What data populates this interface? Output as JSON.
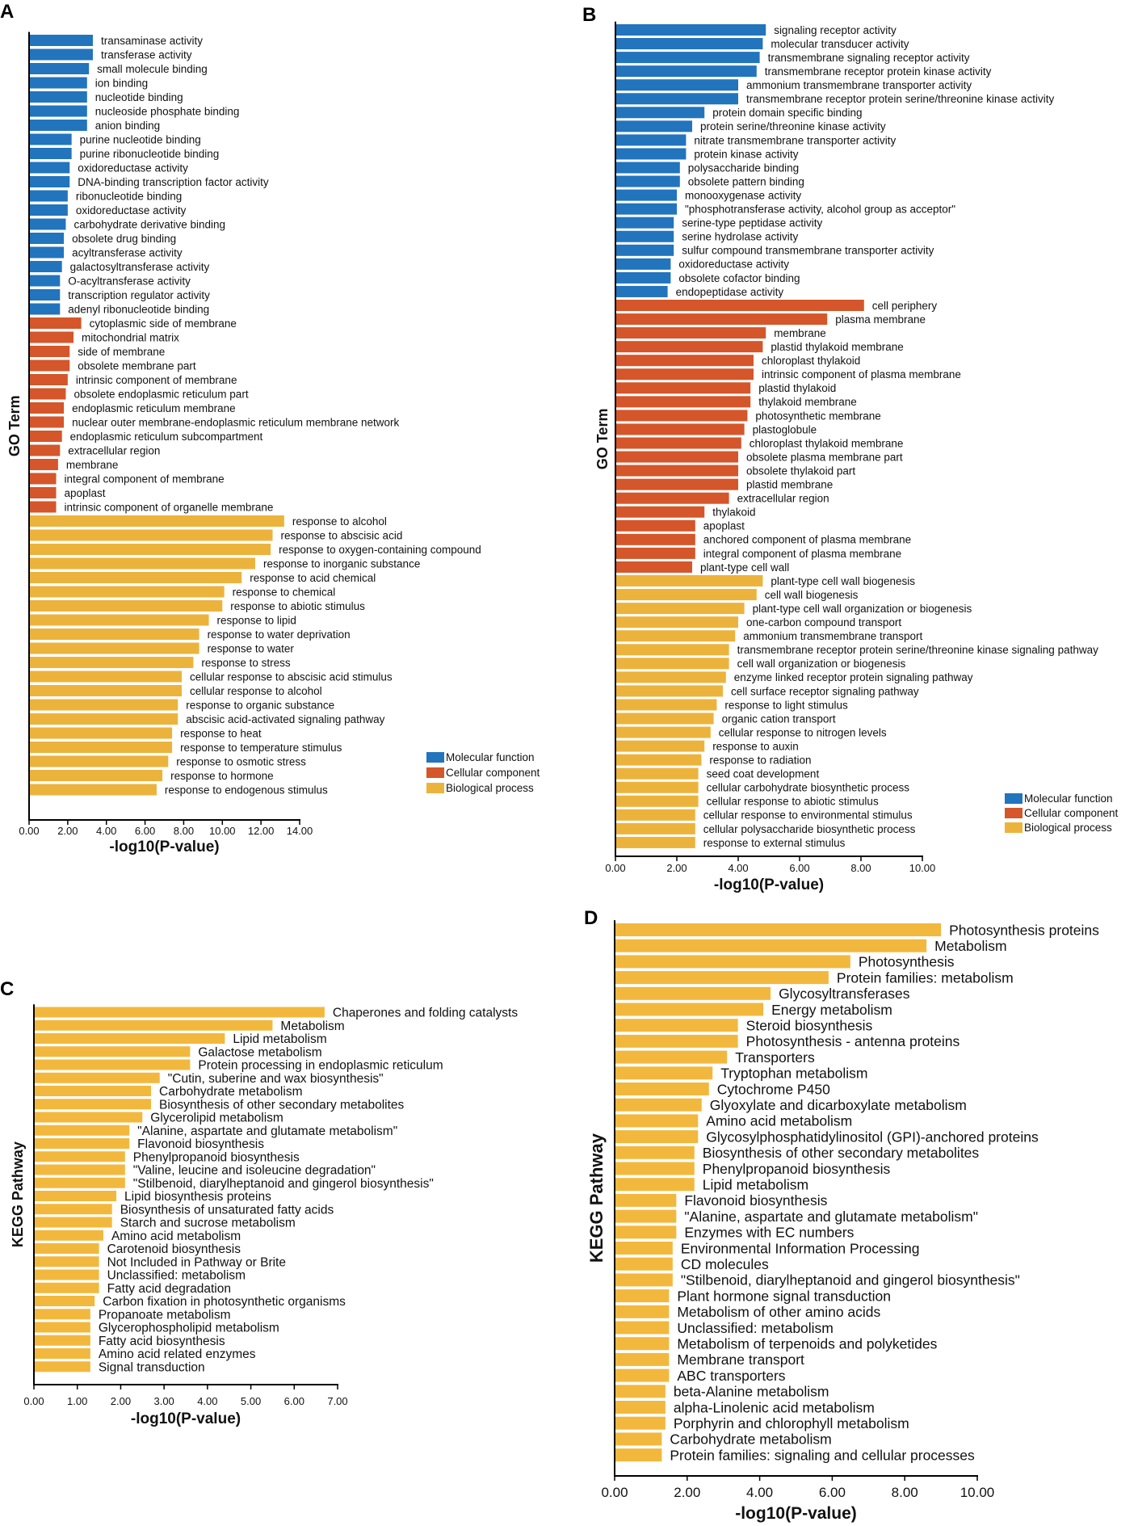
{
  "colors": {
    "molecular_function": "#2274bd",
    "cellular_component": "#d4562a",
    "biological_process": "#ecb33c",
    "kegg": "#f2b83d",
    "axis": "#000000"
  },
  "chart_data": [
    {
      "panel": "A",
      "type": "bar",
      "orientation": "horizontal",
      "xlabel": "-log10(P-value)",
      "ylabel": "GO Term",
      "xlim": [
        0,
        14
      ],
      "xticks": [
        "0.00",
        "2.00",
        "4.00",
        "6.00",
        "8.00",
        "10.00",
        "12.00",
        "14.00"
      ],
      "legend": [
        "Molecular function",
        "Cellular component",
        "Biological process"
      ],
      "legend_position": "bottom-right",
      "categories": [
        "transaminase activity",
        "transferase activity",
        "small molecule binding",
        "ion binding",
        "nucleotide binding",
        "nucleoside phosphate binding",
        "anion binding",
        "purine nucleotide binding",
        "purine ribonucleotide binding",
        "oxidoreductase activity",
        "DNA-binding transcription factor activity",
        "ribonucleotide binding",
        "oxidoreductase activity",
        "carbohydrate derivative binding",
        "obsolete drug binding",
        "acyltransferase activity",
        "galactosyltransferase activity",
        "O-acyltransferase activity",
        "transcription regulator activity",
        "adenyl ribonucleotide binding",
        "cytoplasmic side of membrane",
        "mitochondrial matrix",
        "side of membrane",
        "obsolete membrane part",
        "intrinsic component of membrane",
        "obsolete endoplasmic reticulum part",
        "endoplasmic reticulum membrane",
        "nuclear outer membrane-endoplasmic reticulum membrane network",
        "endoplasmic reticulum subcompartment",
        "extracellular region",
        "membrane",
        "integral component of membrane",
        "apoplast",
        "intrinsic component of organelle membrane",
        "response to alcohol",
        "response to abscisic acid",
        "response to oxygen-containing compound",
        "response to inorganic substance",
        "response to acid chemical",
        "response to chemical",
        "response to abiotic stimulus",
        "response to lipid",
        "response to water deprivation",
        "response to water",
        "response to stress",
        "cellular response to abscisic acid stimulus",
        "cellular response to alcohol",
        "response to organic substance",
        "abscisic acid-activated signaling pathway",
        "response to heat",
        "response to temperature stimulus",
        "response to osmotic stress",
        "response to hormone",
        "response to endogenous stimulus"
      ],
      "values": [
        3.3,
        3.3,
        3.1,
        3.0,
        3.0,
        3.0,
        3.0,
        2.2,
        2.2,
        2.1,
        2.1,
        2.0,
        2.0,
        1.9,
        1.8,
        1.8,
        1.7,
        1.6,
        1.6,
        1.6,
        2.7,
        2.3,
        2.1,
        2.1,
        2.0,
        1.9,
        1.8,
        1.8,
        1.7,
        1.6,
        1.5,
        1.4,
        1.4,
        1.4,
        13.2,
        12.6,
        12.5,
        11.7,
        11.0,
        10.1,
        10.0,
        9.3,
        8.8,
        8.8,
        8.5,
        7.9,
        7.9,
        7.7,
        7.7,
        7.4,
        7.4,
        7.2,
        6.9,
        6.6
      ],
      "groups": [
        "mf",
        "mf",
        "mf",
        "mf",
        "mf",
        "mf",
        "mf",
        "mf",
        "mf",
        "mf",
        "mf",
        "mf",
        "mf",
        "mf",
        "mf",
        "mf",
        "mf",
        "mf",
        "mf",
        "mf",
        "cc",
        "cc",
        "cc",
        "cc",
        "cc",
        "cc",
        "cc",
        "cc",
        "cc",
        "cc",
        "cc",
        "cc",
        "cc",
        "cc",
        "bp",
        "bp",
        "bp",
        "bp",
        "bp",
        "bp",
        "bp",
        "bp",
        "bp",
        "bp",
        "bp",
        "bp",
        "bp",
        "bp",
        "bp",
        "bp",
        "bp",
        "bp",
        "bp",
        "bp"
      ]
    },
    {
      "panel": "B",
      "type": "bar",
      "orientation": "horizontal",
      "xlabel": "-log10(P-value)",
      "ylabel": "GO Term",
      "xlim": [
        0,
        10
      ],
      "xticks": [
        "0.00",
        "2.00",
        "4.00",
        "6.00",
        "8.00",
        "10.00"
      ],
      "legend": [
        "Molecular function",
        "Cellular component",
        "Biological process"
      ],
      "legend_position": "bottom-right",
      "categories": [
        "signaling receptor activity",
        "molecular transducer activity",
        "transmembrane signaling receptor activity",
        "transmembrane receptor protein kinase activity",
        "ammonium transmembrane transporter activity",
        "transmembrane receptor protein serine/threonine kinase activity",
        "protein domain specific binding",
        "protein serine/threonine kinase activity",
        "nitrate transmembrane transporter activity",
        "protein kinase activity",
        "polysaccharide binding",
        "obsolete pattern binding",
        "monooxygenase activity",
        "\"phosphotransferase activity, alcohol group as acceptor\"",
        "serine-type peptidase activity",
        "serine hydrolase activity",
        "sulfur compound transmembrane transporter activity",
        "oxidoreductase activity",
        "obsolete cofactor binding",
        "endopeptidase activity",
        "cell periphery",
        "plasma membrane",
        "membrane",
        "plastid thylakoid membrane",
        "chloroplast thylakoid",
        "intrinsic component of plasma membrane",
        "plastid thylakoid",
        "thylakoid membrane",
        "photosynthetic membrane",
        "plastoglobule",
        "chloroplast thylakoid membrane",
        "obsolete plasma membrane part",
        "obsolete thylakoid part",
        "plastid membrane",
        "extracellular region",
        "thylakoid",
        "apoplast",
        "anchored component of plasma membrane",
        "integral component of plasma membrane",
        "plant-type cell wall",
        "plant-type cell wall biogenesis",
        "cell wall biogenesis",
        "plant-type cell wall organization or biogenesis",
        "one-carbon compound transport",
        "ammonium transmembrane transport",
        "transmembrane receptor protein serine/threonine kinase signaling pathway",
        "cell wall organization or biogenesis",
        "enzyme linked receptor protein signaling pathway",
        "cell surface receptor signaling pathway",
        "response to light stimulus",
        "organic cation transport",
        "cellular response to nitrogen levels",
        "response to auxin",
        "response to radiation",
        "seed coat development",
        "cellular carbohydrate biosynthetic process",
        "cellular response to abiotic stimulus",
        "cellular response to environmental stimulus",
        "cellular polysaccharide biosynthetic process",
        "response to external stimulus"
      ],
      "values": [
        4.9,
        4.8,
        4.7,
        4.6,
        4.0,
        4.0,
        2.9,
        2.5,
        2.3,
        2.3,
        2.1,
        2.1,
        2.0,
        2.0,
        1.9,
        1.9,
        1.9,
        1.8,
        1.8,
        1.7,
        8.1,
        6.9,
        4.9,
        4.8,
        4.5,
        4.5,
        4.4,
        4.4,
        4.3,
        4.2,
        4.1,
        4.0,
        4.0,
        4.0,
        3.7,
        2.9,
        2.6,
        2.6,
        2.6,
        2.5,
        4.8,
        4.6,
        4.2,
        4.0,
        3.9,
        3.7,
        3.7,
        3.6,
        3.5,
        3.3,
        3.2,
        3.1,
        2.9,
        2.8,
        2.7,
        2.7,
        2.7,
        2.6,
        2.6,
        2.6
      ],
      "groups": [
        "mf",
        "mf",
        "mf",
        "mf",
        "mf",
        "mf",
        "mf",
        "mf",
        "mf",
        "mf",
        "mf",
        "mf",
        "mf",
        "mf",
        "mf",
        "mf",
        "mf",
        "mf",
        "mf",
        "mf",
        "cc",
        "cc",
        "cc",
        "cc",
        "cc",
        "cc",
        "cc",
        "cc",
        "cc",
        "cc",
        "cc",
        "cc",
        "cc",
        "cc",
        "cc",
        "cc",
        "cc",
        "cc",
        "cc",
        "cc",
        "bp",
        "bp",
        "bp",
        "bp",
        "bp",
        "bp",
        "bp",
        "bp",
        "bp",
        "bp",
        "bp",
        "bp",
        "bp",
        "bp",
        "bp",
        "bp",
        "bp",
        "bp",
        "bp",
        "bp"
      ]
    },
    {
      "panel": "C",
      "type": "bar",
      "orientation": "horizontal",
      "xlabel": "-log10(P-value)",
      "ylabel": "KEGG Pathway",
      "xlim": [
        0,
        7
      ],
      "xticks": [
        "0.00",
        "1.00",
        "2.00",
        "3.00",
        "4.00",
        "5.00",
        "6.00",
        "7.00"
      ],
      "categories": [
        "Chaperones and folding catalysts",
        "Metabolism",
        "Lipid metabolism",
        "Galactose metabolism",
        "Protein processing in endoplasmic reticulum",
        "\"Cutin, suberine and wax biosynthesis\"",
        "Carbohydrate metabolism",
        "Biosynthesis of other secondary metabolites",
        "Glycerolipid metabolism",
        "\"Alanine, aspartate and glutamate metabolism\"",
        "Flavonoid biosynthesis",
        "Phenylpropanoid biosynthesis",
        "\"Valine, leucine and isoleucine degradation\"",
        "\"Stilbenoid, diarylheptanoid and gingerol biosynthesis\"",
        "Lipid biosynthesis proteins",
        "Biosynthesis of unsaturated fatty acids",
        "Starch and sucrose metabolism",
        "Amino acid metabolism",
        "Carotenoid biosynthesis",
        "Not Included in Pathway or Brite",
        "Unclassified: metabolism",
        "Fatty acid degradation",
        "Carbon fixation in photosynthetic organisms",
        "Propanoate metabolism",
        "Glycerophospholipid metabolism",
        "Fatty acid biosynthesis",
        "Amino acid related enzymes",
        "Signal transduction"
      ],
      "values": [
        6.7,
        5.5,
        4.4,
        3.6,
        3.6,
        2.9,
        2.7,
        2.7,
        2.5,
        2.2,
        2.2,
        2.1,
        2.1,
        2.1,
        1.9,
        1.8,
        1.8,
        1.6,
        1.5,
        1.5,
        1.5,
        1.5,
        1.4,
        1.3,
        1.3,
        1.3,
        1.3,
        1.3
      ]
    },
    {
      "panel": "D",
      "type": "bar",
      "orientation": "horizontal",
      "xlabel": "-log10(P-value)",
      "ylabel": "KEGG Pathway",
      "xlim": [
        0,
        10
      ],
      "xticks": [
        "0.00",
        "2.00",
        "4.00",
        "6.00",
        "8.00",
        "10.00"
      ],
      "categories": [
        "Photosynthesis proteins",
        "Metabolism",
        "Photosynthesis",
        "Protein families: metabolism",
        "Glycosyltransferases",
        "Energy metabolism",
        "Steroid biosynthesis",
        "Photosynthesis - antenna proteins",
        "Transporters",
        "Tryptophan metabolism",
        "Cytochrome P450",
        "Glyoxylate and dicarboxylate metabolism",
        "Amino acid metabolism",
        "Glycosylphosphatidylinositol (GPI)-anchored proteins",
        "Biosynthesis of other secondary metabolites",
        "Phenylpropanoid biosynthesis",
        "Lipid metabolism",
        "Flavonoid biosynthesis",
        "\"Alanine, aspartate and glutamate metabolism\"",
        "Enzymes with EC numbers",
        "Environmental Information Processing",
        "CD molecules",
        "\"Stilbenoid, diarylheptanoid and gingerol biosynthesis\"",
        "Plant hormone signal transduction",
        "Metabolism of other amino acids",
        "Unclassified: metabolism",
        "Metabolism of terpenoids and polyketides",
        "Membrane transport",
        "ABC transporters",
        "beta-Alanine metabolism",
        "alpha-Linolenic acid metabolism",
        "Porphyrin and chlorophyll metabolism",
        "Carbohydrate metabolism",
        "Protein families: signaling and cellular processes"
      ],
      "values": [
        9.0,
        8.6,
        6.5,
        5.9,
        4.3,
        4.1,
        3.4,
        3.4,
        3.1,
        2.7,
        2.6,
        2.4,
        2.3,
        2.3,
        2.2,
        2.2,
        2.2,
        1.7,
        1.7,
        1.7,
        1.6,
        1.6,
        1.6,
        1.5,
        1.5,
        1.5,
        1.5,
        1.5,
        1.5,
        1.4,
        1.4,
        1.4,
        1.3,
        1.3
      ]
    }
  ]
}
